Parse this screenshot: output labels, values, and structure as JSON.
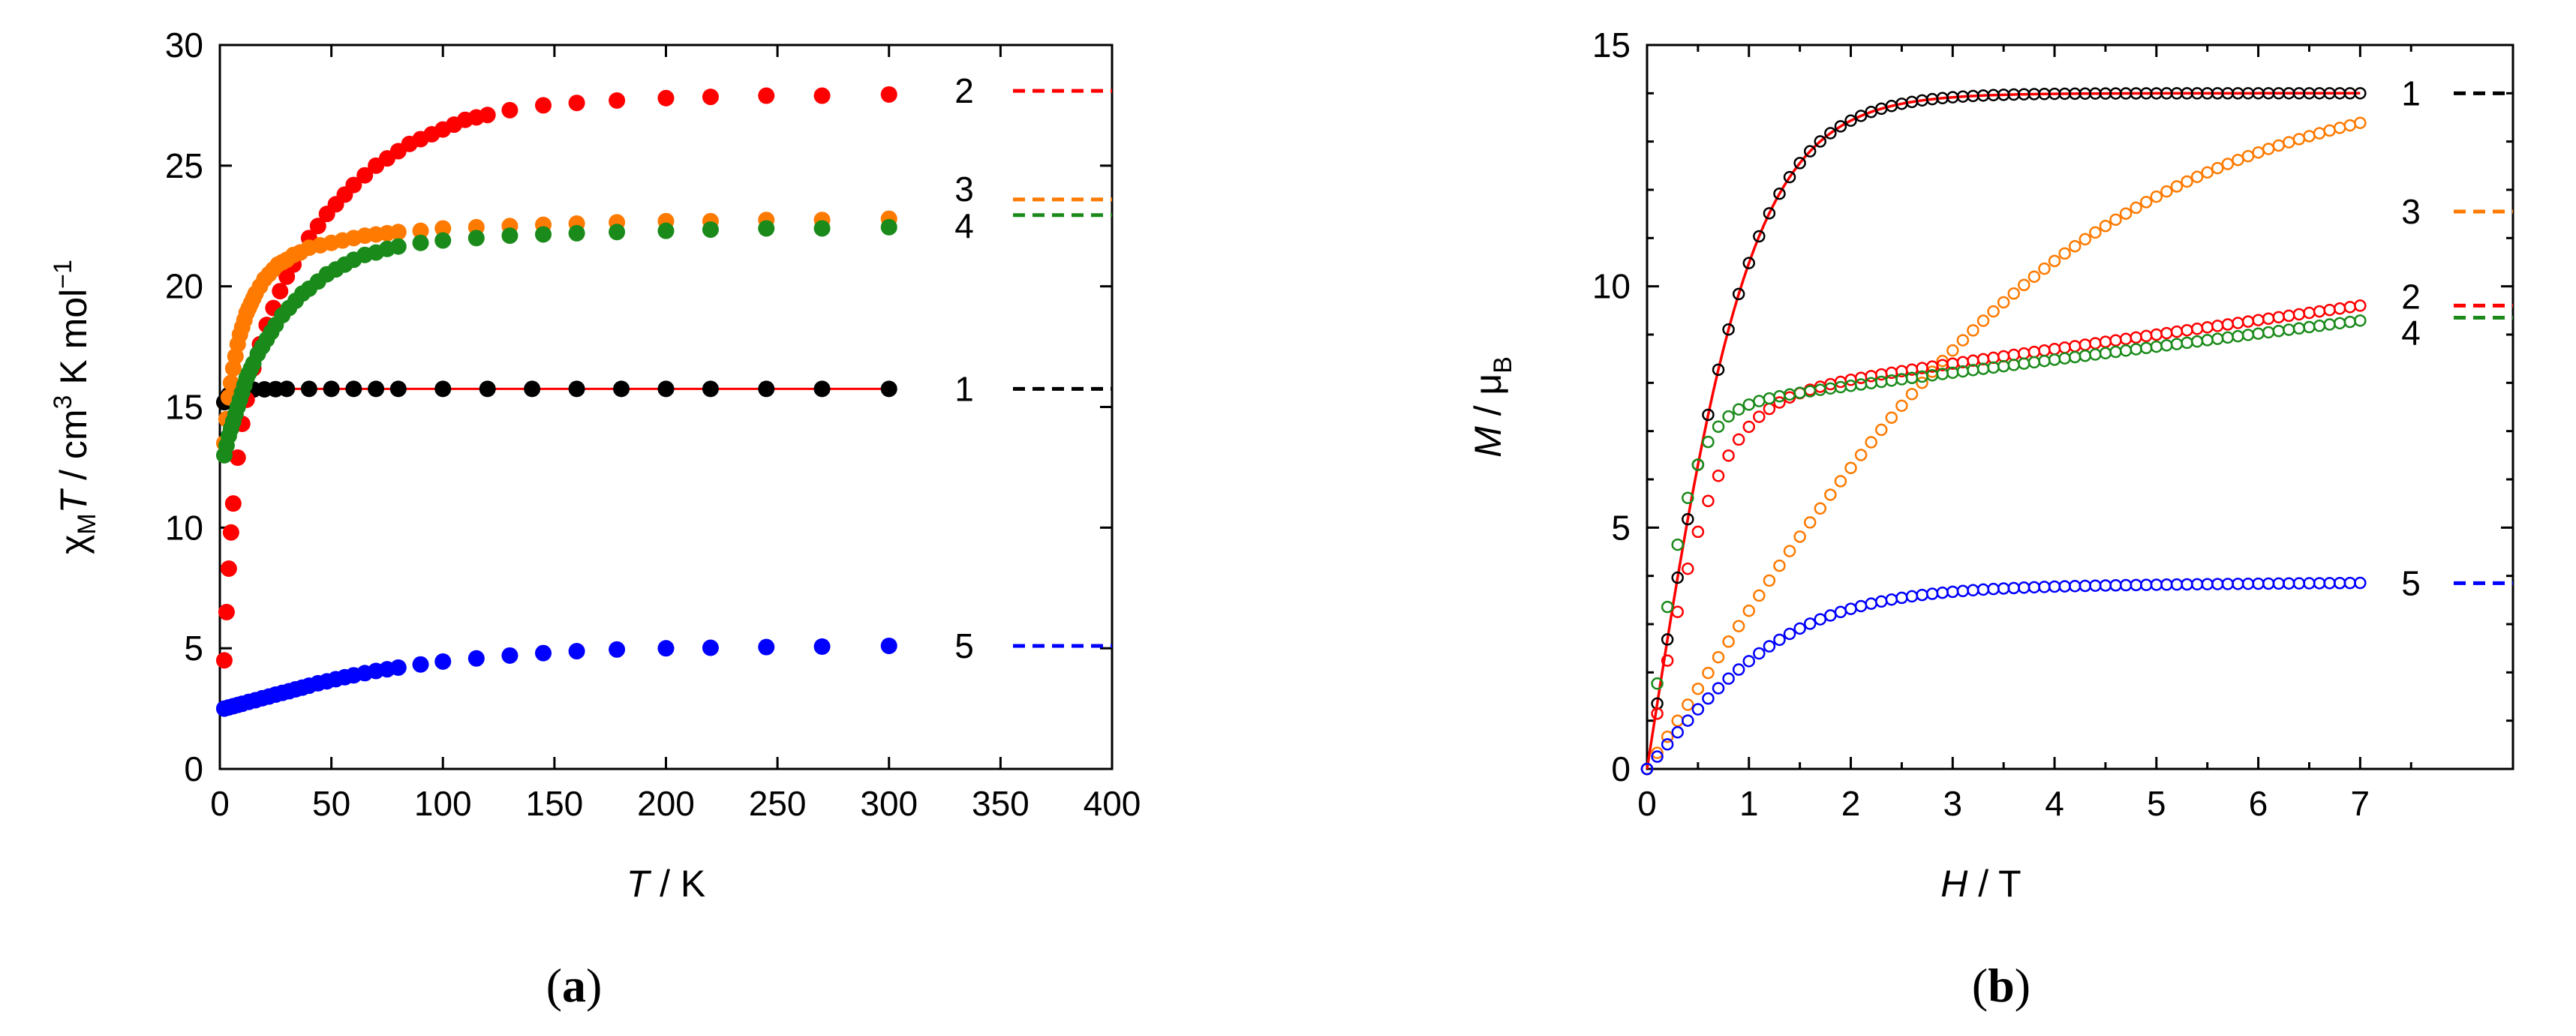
{
  "chart_data": [
    {
      "panel": "(a)",
      "panel_letter": "a",
      "type": "scatter",
      "xlabel_italic": "T",
      "xlabel_rest": " / K",
      "ylabel_parts": {
        "chi": "χ",
        "sub": "M",
        "t": "T",
        "rest": " / cm",
        "sup3": "3",
        "rest2": " K mol",
        "supneg": "−1"
      },
      "xlim": [
        0,
        400
      ],
      "ylim": [
        0,
        30
      ],
      "xticks": [
        0,
        50,
        100,
        150,
        200,
        250,
        300,
        350,
        400
      ],
      "yticks": [
        0,
        5,
        10,
        15,
        20,
        25,
        30
      ],
      "marker": "filled-circle",
      "series": [
        {
          "name": "1",
          "color": "#000000",
          "limit": 15.75,
          "fit": true,
          "fit_color": "#ff0000",
          "points": [
            [
              2,
              15.2
            ],
            [
              4,
              15.5
            ],
            [
              6,
              15.6
            ],
            [
              8,
              15.65
            ],
            [
              10,
              15.7
            ],
            [
              15,
              15.72
            ],
            [
              20,
              15.73
            ],
            [
              25,
              15.74
            ],
            [
              30,
              15.75
            ],
            [
              40,
              15.75
            ],
            [
              50,
              15.75
            ],
            [
              60,
              15.75
            ],
            [
              70,
              15.75
            ],
            [
              80,
              15.75
            ],
            [
              100,
              15.75
            ],
            [
              120,
              15.75
            ],
            [
              140,
              15.75
            ],
            [
              160,
              15.75
            ],
            [
              180,
              15.75
            ],
            [
              200,
              15.75
            ],
            [
              220,
              15.75
            ],
            [
              245,
              15.75
            ],
            [
              270,
              15.75
            ],
            [
              300,
              15.75
            ]
          ]
        },
        {
          "name": "2",
          "color": "#ff0000",
          "limit": 28.1,
          "points": [
            [
              2,
              4.5
            ],
            [
              3,
              6.5
            ],
            [
              4,
              8.3
            ],
            [
              5,
              9.8
            ],
            [
              6,
              11.0
            ],
            [
              8,
              12.9
            ],
            [
              10,
              14.3
            ],
            [
              12,
              15.3
            ],
            [
              15,
              16.6
            ],
            [
              18,
              17.6
            ],
            [
              21,
              18.4
            ],
            [
              24,
              19.1
            ],
            [
              27,
              19.8
            ],
            [
              30,
              20.4
            ],
            [
              33,
              20.9
            ],
            [
              36,
              21.4
            ],
            [
              40,
              22.0
            ],
            [
              44,
              22.5
            ],
            [
              48,
              23.0
            ],
            [
              52,
              23.4
            ],
            [
              56,
              23.8
            ],
            [
              60,
              24.2
            ],
            [
              65,
              24.6
            ],
            [
              70,
              25.0
            ],
            [
              75,
              25.3
            ],
            [
              80,
              25.6
            ],
            [
              85,
              25.9
            ],
            [
              90,
              26.1
            ],
            [
              95,
              26.3
            ],
            [
              100,
              26.5
            ],
            [
              105,
              26.7
            ],
            [
              110,
              26.9
            ],
            [
              115,
              27.0
            ],
            [
              120,
              27.1
            ],
            [
              130,
              27.3
            ],
            [
              145,
              27.5
            ],
            [
              160,
              27.6
            ],
            [
              178,
              27.7
            ],
            [
              200,
              27.8
            ],
            [
              220,
              27.85
            ],
            [
              245,
              27.9
            ],
            [
              270,
              27.9
            ],
            [
              300,
              27.95
            ]
          ]
        },
        {
          "name": "3",
          "color": "#ff7a00",
          "limit": 23.6,
          "points": [
            [
              2,
              13.5
            ],
            [
              3,
              14.5
            ],
            [
              4,
              15.4
            ],
            [
              5,
              16.0
            ],
            [
              6,
              16.6
            ],
            [
              7,
              17.1
            ],
            [
              8,
              17.6
            ],
            [
              9,
              18.0
            ],
            [
              10,
              18.3
            ],
            [
              11,
              18.6
            ],
            [
              12,
              18.9
            ],
            [
              13,
              19.1
            ],
            [
              14,
              19.3
            ],
            [
              15,
              19.5
            ],
            [
              16,
              19.7
            ],
            [
              18,
              20.0
            ],
            [
              20,
              20.3
            ],
            [
              22,
              20.5
            ],
            [
              24,
              20.7
            ],
            [
              26,
              20.9
            ],
            [
              28,
              21.0
            ],
            [
              30,
              21.1
            ],
            [
              33,
              21.3
            ],
            [
              36,
              21.4
            ],
            [
              40,
              21.6
            ],
            [
              45,
              21.7
            ],
            [
              50,
              21.8
            ],
            [
              55,
              21.9
            ],
            [
              60,
              22.0
            ],
            [
              65,
              22.1
            ],
            [
              70,
              22.15
            ],
            [
              75,
              22.2
            ],
            [
              80,
              22.25
            ],
            [
              90,
              22.3
            ],
            [
              100,
              22.4
            ],
            [
              115,
              22.45
            ],
            [
              130,
              22.5
            ],
            [
              145,
              22.55
            ],
            [
              160,
              22.6
            ],
            [
              178,
              22.65
            ],
            [
              200,
              22.7
            ],
            [
              220,
              22.7
            ],
            [
              245,
              22.75
            ],
            [
              270,
              22.75
            ],
            [
              300,
              22.8
            ]
          ]
        },
        {
          "name": "4",
          "color": "#1a8a1a",
          "limit": 22.95,
          "points": [
            [
              2,
              13.0
            ],
            [
              3,
              13.4
            ],
            [
              4,
              13.8
            ],
            [
              5,
              14.1
            ],
            [
              6,
              14.4
            ],
            [
              7,
              14.7
            ],
            [
              8,
              15.0
            ],
            [
              9,
              15.3
            ],
            [
              10,
              15.6
            ],
            [
              11,
              15.9
            ],
            [
              12,
              16.2
            ],
            [
              13,
              16.4
            ],
            [
              14,
              16.6
            ],
            [
              15,
              16.8
            ],
            [
              17,
              17.2
            ],
            [
              19,
              17.5
            ],
            [
              21,
              17.8
            ],
            [
              23,
              18.1
            ],
            [
              25,
              18.4
            ],
            [
              28,
              18.8
            ],
            [
              31,
              19.1
            ],
            [
              34,
              19.4
            ],
            [
              37,
              19.7
            ],
            [
              40,
              19.9
            ],
            [
              44,
              20.2
            ],
            [
              48,
              20.5
            ],
            [
              52,
              20.7
            ],
            [
              56,
              20.9
            ],
            [
              60,
              21.1
            ],
            [
              65,
              21.3
            ],
            [
              70,
              21.4
            ],
            [
              75,
              21.55
            ],
            [
              80,
              21.65
            ],
            [
              90,
              21.8
            ],
            [
              100,
              21.9
            ],
            [
              115,
              22.0
            ],
            [
              130,
              22.1
            ],
            [
              145,
              22.15
            ],
            [
              160,
              22.2
            ],
            [
              178,
              22.25
            ],
            [
              200,
              22.3
            ],
            [
              220,
              22.35
            ],
            [
              245,
              22.4
            ],
            [
              270,
              22.4
            ],
            [
              300,
              22.45
            ]
          ]
        },
        {
          "name": "5",
          "color": "#0000ff",
          "limit": 5.1,
          "points": [
            [
              2,
              2.5
            ],
            [
              4,
              2.55
            ],
            [
              6,
              2.6
            ],
            [
              8,
              2.65
            ],
            [
              10,
              2.7
            ],
            [
              13,
              2.78
            ],
            [
              16,
              2.85
            ],
            [
              19,
              2.93
            ],
            [
              22,
              3.0
            ],
            [
              25,
              3.08
            ],
            [
              28,
              3.15
            ],
            [
              31,
              3.22
            ],
            [
              34,
              3.3
            ],
            [
              37,
              3.37
            ],
            [
              40,
              3.45
            ],
            [
              44,
              3.55
            ],
            [
              48,
              3.63
            ],
            [
              52,
              3.72
            ],
            [
              56,
              3.8
            ],
            [
              60,
              3.88
            ],
            [
              65,
              3.97
            ],
            [
              70,
              4.06
            ],
            [
              75,
              4.13
            ],
            [
              80,
              4.2
            ],
            [
              90,
              4.33
            ],
            [
              100,
              4.45
            ],
            [
              115,
              4.58
            ],
            [
              130,
              4.7
            ],
            [
              145,
              4.8
            ],
            [
              160,
              4.88
            ],
            [
              178,
              4.95
            ],
            [
              200,
              5.0
            ],
            [
              220,
              5.02
            ],
            [
              245,
              5.05
            ],
            [
              270,
              5.07
            ],
            [
              300,
              5.1
            ]
          ]
        }
      ]
    },
    {
      "panel": "(b)",
      "panel_letter": "b",
      "type": "scatter",
      "xlabel_italic": "H",
      "xlabel_rest": " / T",
      "ylabel_parts": {
        "m": "M",
        "rest": " / μ",
        "sub": "B"
      },
      "xlim": [
        0,
        8.5
      ],
      "ylim": [
        0,
        15
      ],
      "xticks": [
        0,
        1,
        2,
        3,
        4,
        5,
        6,
        7
      ],
      "yticks": [
        0,
        5,
        10,
        15
      ],
      "marker": "open-circle",
      "series": [
        {
          "name": "1",
          "color": "#000000",
          "limit": 14.0,
          "fit": true,
          "fit_color": "#ff0000",
          "model": {
            "a": 14.0,
            "b": 0.97
          }
        },
        {
          "name": "3",
          "color": "#ff7a00",
          "limit": 11.55,
          "model": {
            "a": 14.5,
            "b": 0.23
          }
        },
        {
          "name": "2",
          "color": "#ff0000",
          "limit": 9.6,
          "model": {
            "a": 7.5,
            "b": 1.5,
            "c": 0.3
          }
        },
        {
          "name": "4",
          "color": "#1a8a1a",
          "limit": 9.35,
          "model": {
            "a": 7.4,
            "b": 2.4,
            "c": 0.27
          }
        },
        {
          "name": "5",
          "color": "#0000ff",
          "limit": 3.85,
          "model": {
            "a": 3.75,
            "b": 0.68,
            "c": 0.015
          }
        }
      ]
    }
  ]
}
